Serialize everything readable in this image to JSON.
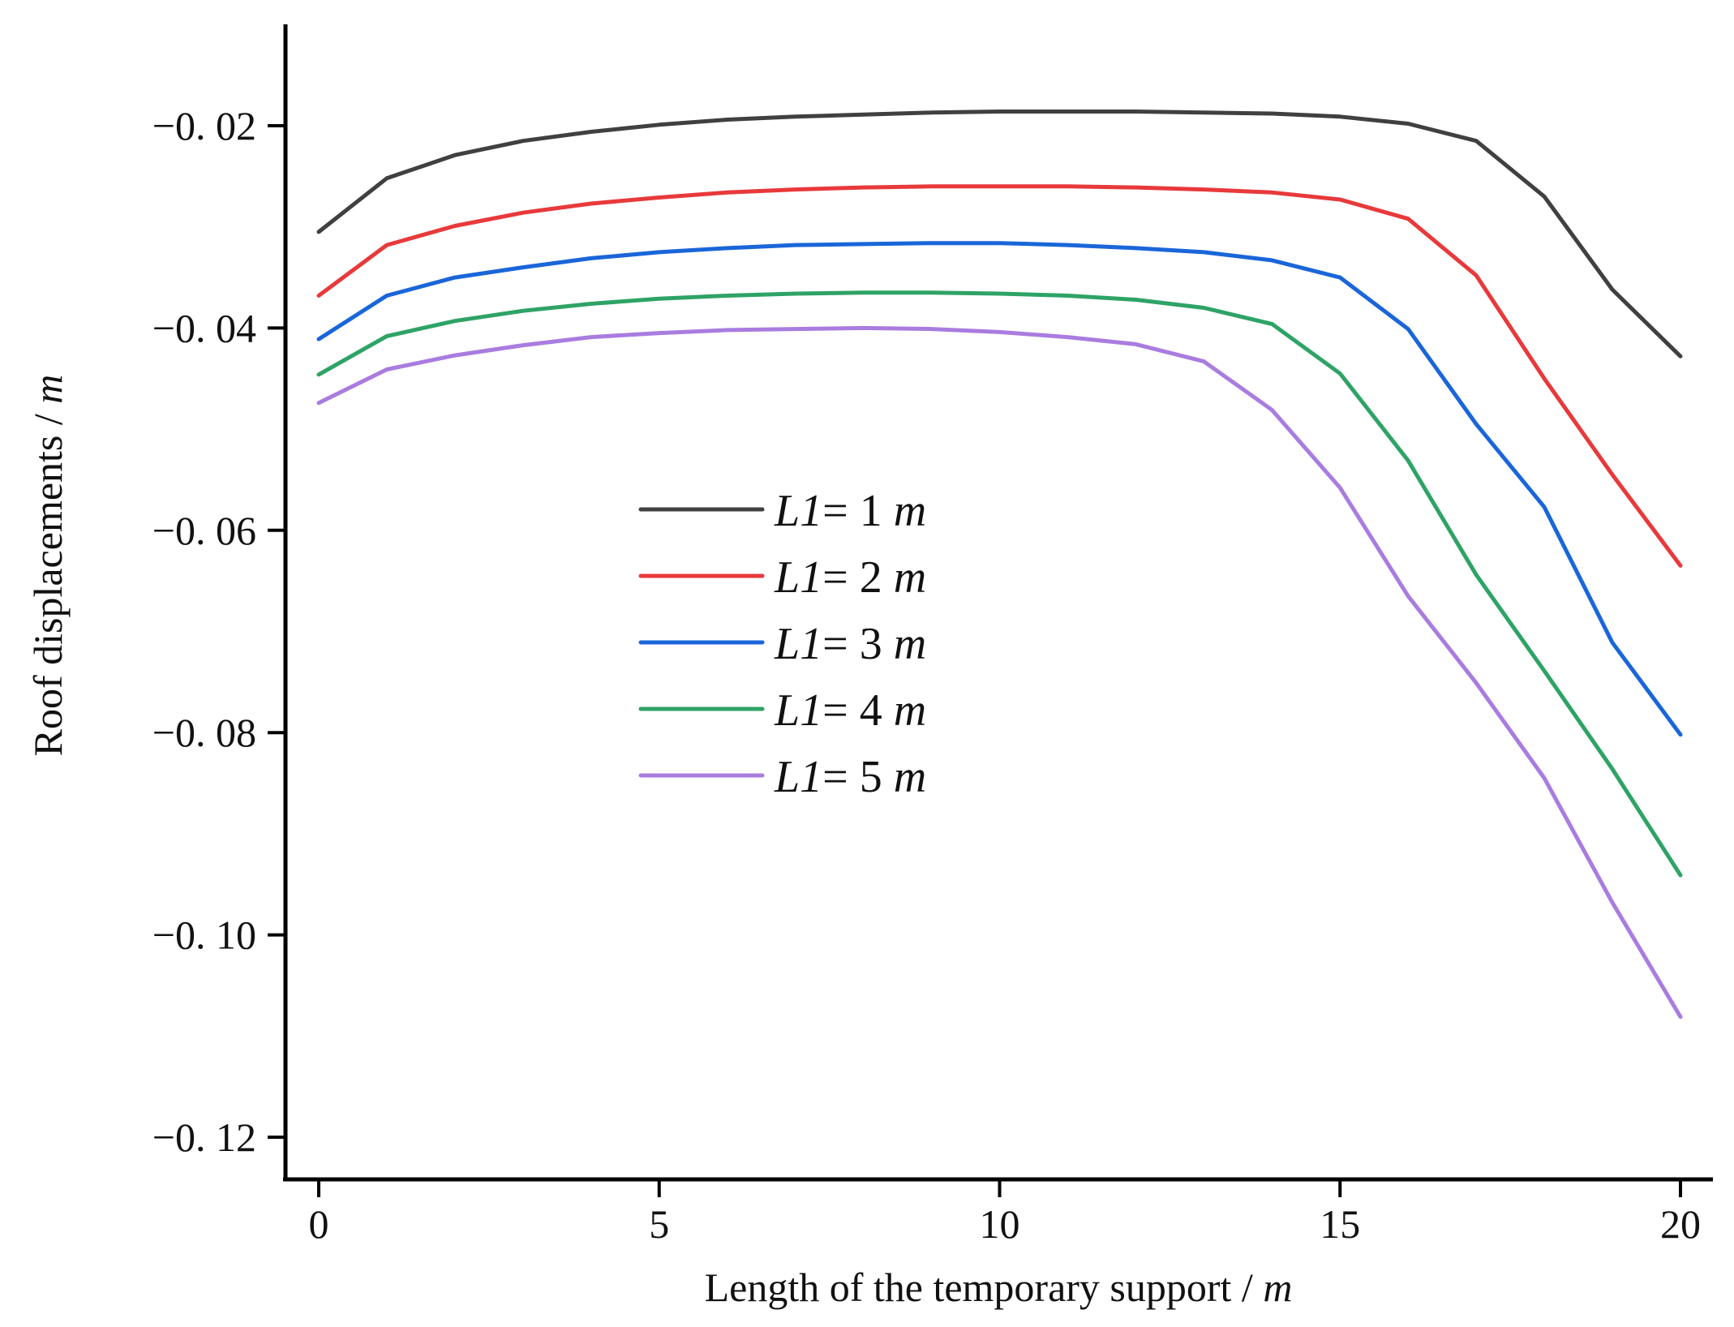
{
  "chart_data": {
    "type": "line",
    "title": "",
    "xlabel": "Length of the temporary support / ",
    "xlabel_unit": "m",
    "ylabel": "Roof displacements / ",
    "ylabel_unit": "m",
    "xlim": [
      -0.5,
      20.5
    ],
    "ylim": [
      -0.125,
      -0.01
    ],
    "x_ticks": [
      0,
      5,
      10,
      15,
      20
    ],
    "x_tick_labels": [
      "0",
      "5",
      "10",
      "15",
      "20"
    ],
    "y_ticks": [
      -0.02,
      -0.04,
      -0.06,
      -0.08,
      -0.1,
      -0.12
    ],
    "y_tick_labels": [
      "−0. 02",
      "−0. 04",
      "−0. 06",
      "−0. 08",
      "−0. 10",
      "−0. 12"
    ],
    "grid": false,
    "legend_position": "center-left",
    "x": [
      0,
      1,
      2,
      3,
      4,
      5,
      6,
      7,
      8,
      9,
      10,
      11,
      12,
      13,
      14,
      15,
      16,
      17,
      18,
      19,
      20
    ],
    "series": [
      {
        "name": "L1= 1 m",
        "label_var": "L1",
        "label_eq": "= 1 ",
        "label_unit": "m",
        "color": "#404040",
        "values": [
          -0.0305,
          -0.0252,
          -0.0229,
          -0.0215,
          -0.0206,
          -0.0199,
          -0.0194,
          -0.0191,
          -0.0189,
          -0.0187,
          -0.0186,
          -0.0186,
          -0.0186,
          -0.0187,
          -0.0188,
          -0.0191,
          -0.0198,
          -0.0215,
          -0.027,
          -0.0362,
          -0.0428
        ]
      },
      {
        "name": "L1= 2 m",
        "label_var": "L1",
        "label_eq": "= 2 ",
        "label_unit": "m",
        "color": "#e8393b",
        "values": [
          -0.0368,
          -0.0318,
          -0.0299,
          -0.0286,
          -0.0277,
          -0.0271,
          -0.0266,
          -0.0263,
          -0.0261,
          -0.026,
          -0.026,
          -0.026,
          -0.0261,
          -0.0263,
          -0.0266,
          -0.0273,
          -0.0292,
          -0.0348,
          -0.045,
          -0.0545,
          -0.0635
        ]
      },
      {
        "name": "L1= 3 m",
        "label_var": "L1",
        "label_eq": "= 3 ",
        "label_unit": "m",
        "color": "#1a66d9",
        "values": [
          -0.0411,
          -0.0368,
          -0.035,
          -0.034,
          -0.0331,
          -0.0325,
          -0.0321,
          -0.0318,
          -0.0317,
          -0.0316,
          -0.0316,
          -0.0318,
          -0.0321,
          -0.0325,
          -0.0333,
          -0.035,
          -0.0401,
          -0.0495,
          -0.0577,
          -0.0711,
          -0.0802
        ]
      },
      {
        "name": "L1= 4 m",
        "label_var": "L1",
        "label_eq": "= 4 ",
        "label_unit": "m",
        "color": "#2ea366",
        "values": [
          -0.0446,
          -0.0408,
          -0.0393,
          -0.0383,
          -0.0376,
          -0.0371,
          -0.0368,
          -0.0366,
          -0.0365,
          -0.0365,
          -0.0366,
          -0.0368,
          -0.0372,
          -0.038,
          -0.0396,
          -0.0445,
          -0.0531,
          -0.0644,
          -0.0739,
          -0.0836,
          -0.0941
        ]
      },
      {
        "name": "L1= 5 m",
        "label_var": "L1",
        "label_eq": "= 5 ",
        "label_unit": "m",
        "color": "#a97ce0",
        "values": [
          -0.0474,
          -0.0441,
          -0.0427,
          -0.0417,
          -0.0409,
          -0.0405,
          -0.0402,
          -0.0401,
          -0.04,
          -0.0401,
          -0.0404,
          -0.0409,
          -0.0416,
          -0.0433,
          -0.0481,
          -0.0558,
          -0.0665,
          -0.0751,
          -0.0845,
          -0.0968,
          -0.1081
        ]
      }
    ]
  }
}
